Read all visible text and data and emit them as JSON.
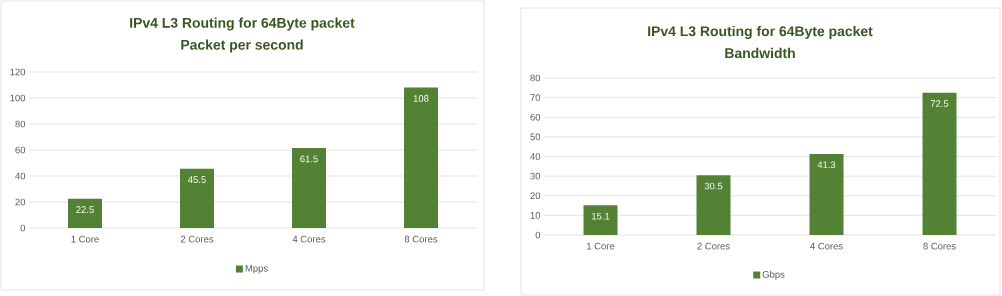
{
  "chart_data": [
    {
      "type": "bar",
      "title": "IPv4 L3 Routing for 64Byte packet",
      "subtitle": "Packet per second",
      "categories": [
        "1 Core",
        "2 Cores",
        "4 Cores",
        "8 Cores"
      ],
      "series": [
        {
          "name": "Mpps",
          "color": "#548235",
          "values": [
            22.5,
            45.5,
            61.5,
            108
          ]
        }
      ],
      "ylim": [
        0,
        120
      ],
      "yticks": [
        0,
        20,
        40,
        60,
        80,
        100,
        120
      ],
      "grid": "y",
      "legend": "bottom",
      "data_labels": true
    },
    {
      "type": "bar",
      "title": "IPv4 L3 Routing for 64Byte packet",
      "subtitle": "Bandwidth",
      "categories": [
        "1 Core",
        "2 Cores",
        "4 Cores",
        "8 Cores"
      ],
      "series": [
        {
          "name": "Gbps",
          "color": "#548235",
          "values": [
            15.1,
            30.5,
            41.3,
            72.5
          ]
        }
      ],
      "ylim": [
        0,
        80
      ],
      "yticks": [
        0,
        10,
        20,
        30,
        40,
        50,
        60,
        70,
        80
      ],
      "grid": "y",
      "legend": "bottom",
      "data_labels": true
    }
  ]
}
